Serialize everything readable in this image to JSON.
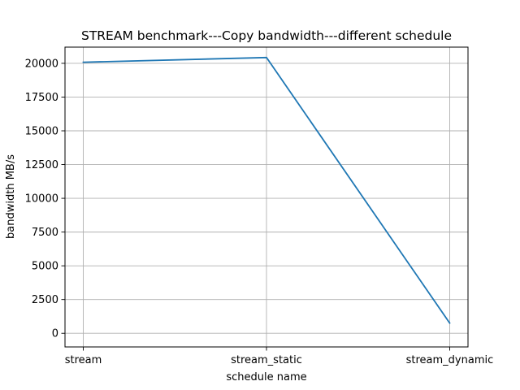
{
  "chart_data": {
    "type": "line",
    "title": "STREAM benchmark---Copy bandwidth---different schedule",
    "xlabel": "schedule name",
    "ylabel": "bandwidth MB/s",
    "categories": [
      "stream",
      "stream_static",
      "stream_dynamic"
    ],
    "series": [
      {
        "values": [
          20080,
          20430,
          760
        ],
        "color": "#1f77b4"
      }
    ],
    "ylim": [
      -1010,
      21200
    ],
    "yticks": [
      0,
      2500,
      5000,
      7500,
      10000,
      12500,
      15000,
      17500,
      20000
    ],
    "grid": true,
    "legend": "none"
  }
}
